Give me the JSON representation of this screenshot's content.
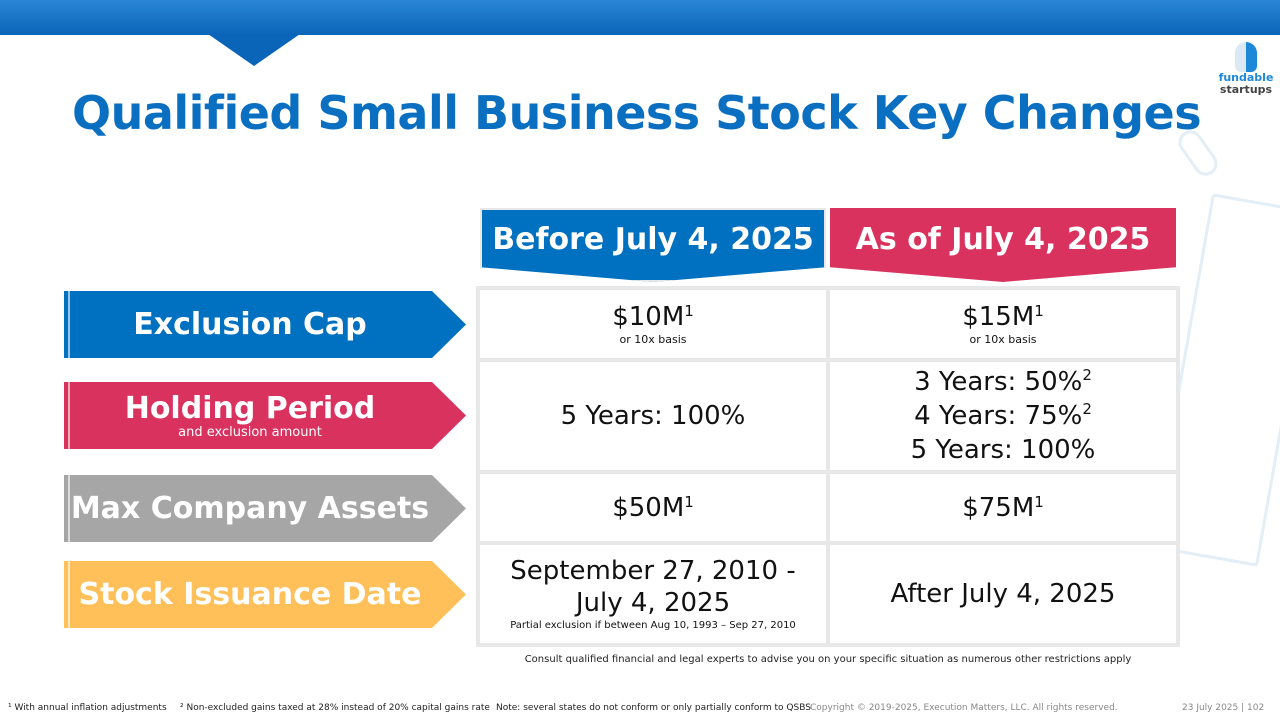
{
  "title": "Qualified Small Business Stock Key Changes",
  "logo": {
    "line1": "fundable",
    "line2": "startups"
  },
  "columns": {
    "before": "Before July 4, 2025",
    "after": "As of July 4, 2025"
  },
  "rows": [
    {
      "label": "Exclusion Cap",
      "before": {
        "main": "$10M",
        "sup": "1",
        "note": "or 10x basis"
      },
      "after": {
        "main": "$15M",
        "sup": "1",
        "note": "or 10x basis"
      }
    },
    {
      "label": "Holding Period",
      "sublabel": "and exclusion amount",
      "before": {
        "main": "5 Years: 100%"
      },
      "after": {
        "l1": "3 Years: 50%",
        "s1": "2",
        "l2": "4 Years: 75%",
        "s2": "2",
        "l3": "5 Years: 100%"
      }
    },
    {
      "label": "Max Company Assets",
      "before": {
        "main": "$50M",
        "sup": "1"
      },
      "after": {
        "main": "$75M",
        "sup": "1"
      }
    },
    {
      "label": "Stock Issuance Date",
      "before": {
        "l1": "September 27, 2010 -",
        "l2": "July 4, 2025",
        "note": "Partial exclusion if between Aug 10, 1993 – Sep 27, 2010"
      },
      "after": {
        "main": "After July 4, 2025"
      }
    }
  ],
  "disclaimer": "Consult qualified financial and legal experts to advise you on your specific situation as numerous other restrictions apply",
  "footnotes": {
    "f1": "¹ With annual inflation adjustments",
    "f2": "² Non-excluded gains taxed at 28% instead of 20% capital gains rate",
    "note": "Note: several states do not conform or only partially conform to QSBS",
    "copyright": "Copyright © 2019-2025, Execution Matters, LLC. All rights reserved.",
    "page": "23 July 2025 | 102"
  },
  "colors": {
    "blue": "#0070c0",
    "pink": "#d9325e",
    "gray": "#a6a6a6",
    "yellow": "#ffc05a"
  }
}
